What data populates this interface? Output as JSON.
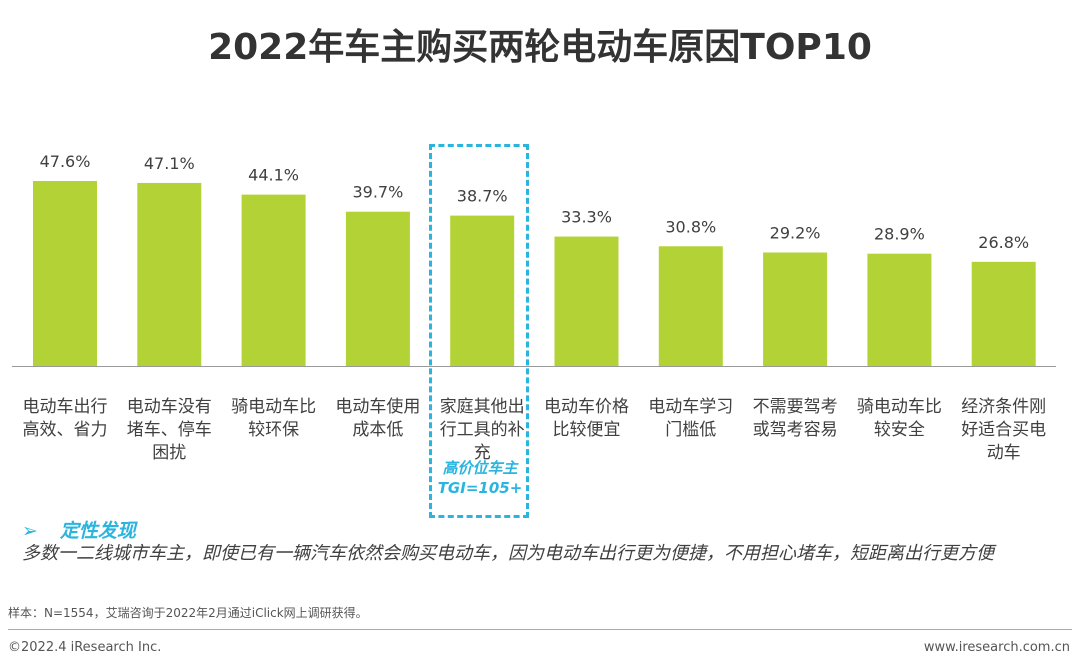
{
  "chart_data": {
    "type": "bar",
    "title": "2022年车主购买两轮电动车原因TOP10",
    "categories": [
      "电动车出行高效、省力",
      "电动车没有堵车、停车困扰",
      "骑电动车比较环保",
      "电动车使用成本低",
      "家庭其他出行工具的补充",
      "电动车价格比较便宜",
      "电动车学习门槛低",
      "不需要驾考或驾考容易",
      "骑电动车比较安全",
      "经济条件刚好适合买电动车"
    ],
    "category_lines": [
      [
        "电动车出行",
        "高效、省力"
      ],
      [
        "电动车没有",
        "堵车、停车",
        "困扰"
      ],
      [
        "骑电动车比",
        "较环保"
      ],
      [
        "电动车使用",
        "成本低"
      ],
      [
        "家庭其他出",
        "行工具的补",
        "充"
      ],
      [
        "电动车价格",
        "比较便宜"
      ],
      [
        "电动车学习",
        "门槛低"
      ],
      [
        "不需要驾考",
        "或驾考容易"
      ],
      [
        "骑电动车比",
        "较安全"
      ],
      [
        "经济条件刚",
        "好适合买电",
        "动车"
      ]
    ],
    "values": [
      47.6,
      47.1,
      44.1,
      39.7,
      38.7,
      33.3,
      30.8,
      29.2,
      28.9,
      26.8
    ],
    "labels": [
      "47.6%",
      "47.1%",
      "44.1%",
      "39.7%",
      "38.7%",
      "33.3%",
      "30.8%",
      "29.2%",
      "28.9%",
      "26.8%"
    ],
    "ylim": [
      0,
      50
    ],
    "grid": false,
    "bar_color": "#b2d235",
    "highlight": {
      "index": 4,
      "color": "#2bb5de",
      "note_lines": [
        "高价位车主",
        "TGI=105+"
      ]
    }
  },
  "finding": {
    "arrow": "➢",
    "heading": "定性发现",
    "body": "多数一二线城市车主，即使已有一辆汽车依然会购买电动车，因为电动车出行更为便捷，不用担心堵车，短距离出行更方便"
  },
  "footer": {
    "sample": "样本：N=1554，艾瑞咨询于2022年2月通过iClick网上调研获得。",
    "copyright": "©2022.4 iResearch Inc.",
    "website": "www.iresearch.com.cn"
  }
}
